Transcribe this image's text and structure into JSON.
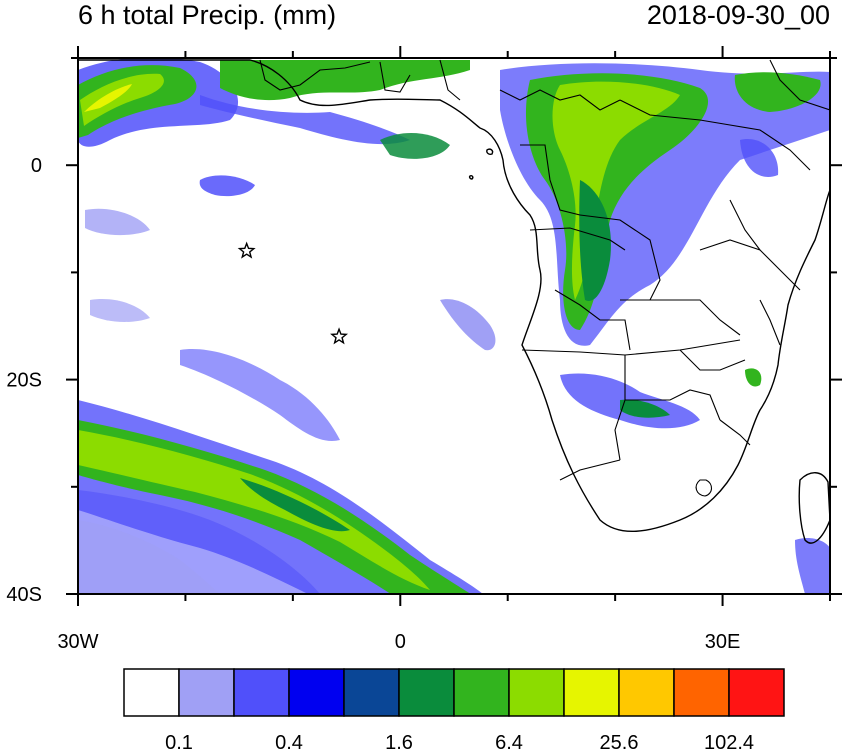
{
  "figure": {
    "title_left": "6 h total Precip. (mm)",
    "title_right": "2018-09-30_00"
  },
  "map": {
    "lon_range": [
      -30,
      40
    ],
    "lat_range": [
      -40,
      10
    ],
    "x_tick_labels": [
      {
        "lon": -30,
        "text": "30W"
      },
      {
        "lon": 0,
        "text": "0"
      },
      {
        "lon": 30,
        "text": "30E"
      }
    ],
    "y_tick_labels": [
      {
        "lat": 0,
        "text": "0"
      },
      {
        "lat": -20,
        "text": "20S"
      },
      {
        "lat": -40,
        "text": "40S"
      }
    ],
    "markers": [
      {
        "name": "station-star-north",
        "lon": -14.3,
        "lat": -8.0
      },
      {
        "name": "station-star-south",
        "lon": -5.7,
        "lat": -16.0
      }
    ],
    "land_color": "#ffffff",
    "coastline_color": "#000000"
  },
  "colorbar": {
    "colors": [
      "#ffffff",
      "#a0a0f5",
      "#5050fa",
      "#0000f0",
      "#0a4696",
      "#0a8c3c",
      "#32b41e",
      "#8cdc00",
      "#e6f500",
      "#ffc800",
      "#ff6400",
      "#ff1414"
    ],
    "labels": [
      "0.1",
      "0.4",
      "1.6",
      "6.4",
      "25.6",
      "102.4"
    ]
  }
}
